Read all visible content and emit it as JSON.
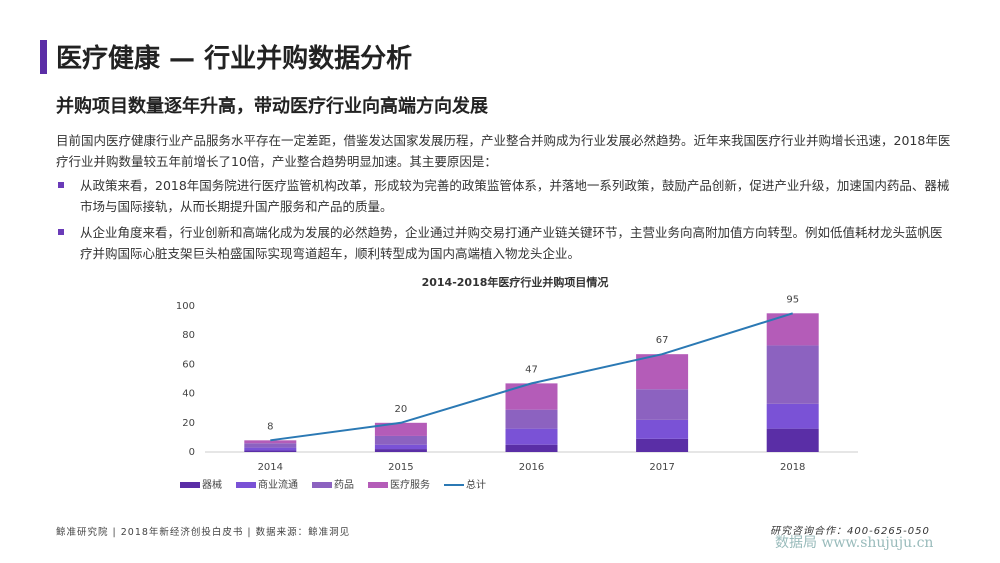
{
  "header": {
    "title": "医疗健康 — 行业并购数据分析",
    "subtitle": "并购项目数量逐年升高，带动医疗行业向高端方向发展"
  },
  "intro": "目前国内医疗健康行业产品服务水平存在一定差距，借鉴发达国家发展历程，产业整合并购成为行业发展必然趋势。近年来我国医疗行业并购增长迅速，2018年医疗行业并购数量较五年前增长了10倍，产业整合趋势明显加速。其主要原因是：",
  "bullets": [
    "从政策来看，2018年国务院进行医疗监管机构改革，形成较为完善的政策监管体系，并落地一系列政策，鼓励产品创新，促进产业升级，加速国内药品、器械市场与国际接轨，从而长期提升国产服务和产品的质量。",
    "从企业角度来看，行业创新和高端化成为发展的必然趋势，企业通过并购交易打通产业链关键环节，主营业务向高附加值方向转型。例如低值耗材龙头蓝帆医疗并购国际心脏支架巨头柏盛国际实现弯道超车，顺利转型成为国内高端植入物龙头企业。"
  ],
  "chart_data": {
    "type": "stacked_bar_line",
    "title": "2014-2018年医疗行业并购项目情况",
    "categories": [
      "2014",
      "2015",
      "2016",
      "2017",
      "2018"
    ],
    "series": [
      {
        "name": "器械",
        "color": "#5a2ea6",
        "values": [
          1,
          2,
          5,
          9,
          16
        ]
      },
      {
        "name": "商业流通",
        "color": "#7a52d6",
        "values": [
          2,
          3,
          11,
          13,
          17
        ]
      },
      {
        "name": "药品",
        "color": "#8c62c0",
        "values": [
          3,
          6,
          13,
          21,
          40
        ]
      },
      {
        "name": "医疗服务",
        "color": "#b45cb8",
        "values": [
          2,
          9,
          18,
          24,
          22
        ]
      },
      {
        "name": "总计",
        "color": "#2b79b4",
        "type": "line",
        "values": [
          8,
          20,
          47,
          67,
          95
        ]
      }
    ],
    "ylim": [
      0,
      100
    ],
    "yticks": [
      0,
      20,
      40,
      60,
      80,
      100
    ]
  },
  "footer": {
    "left": "鲸准研究院 | 2018年新经济创投白皮书 | 数据来源：鲸准洞见",
    "right": "研究咨询合作：400-6265-050",
    "watermark": "数据局 www.shujuju.cn"
  }
}
